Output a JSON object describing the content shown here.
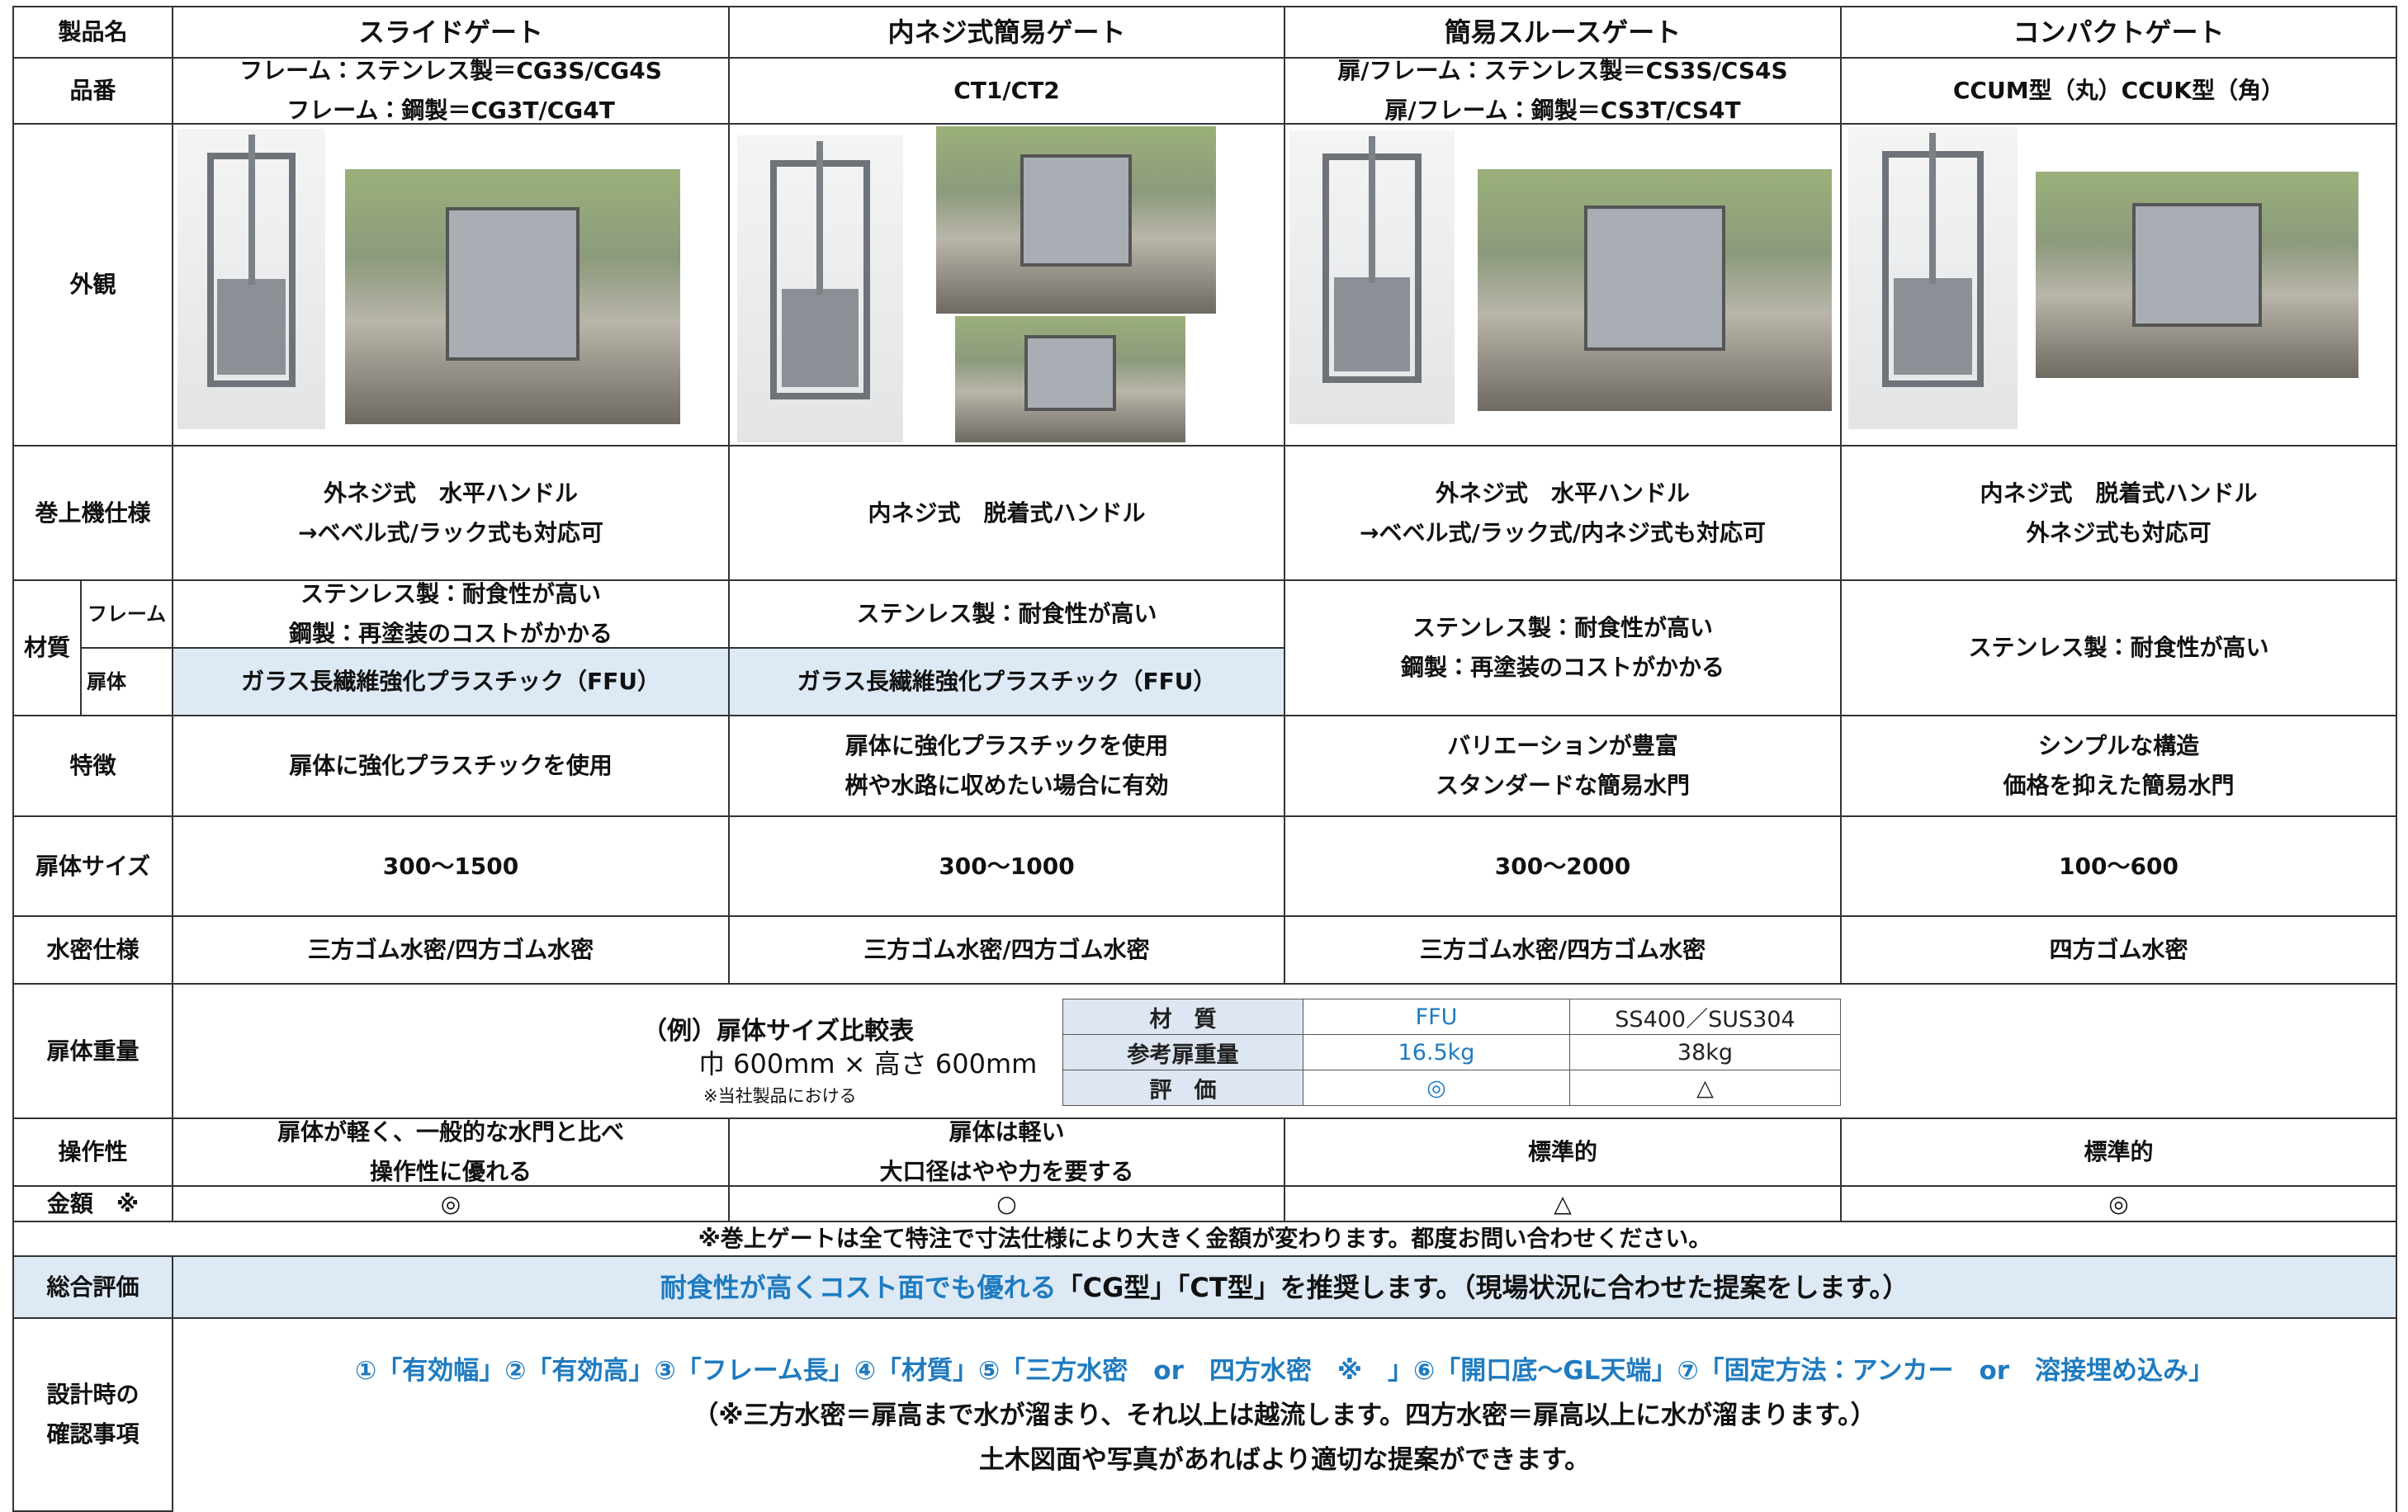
{
  "header": {
    "label": "製品名",
    "products": [
      "スライドゲート",
      "内ネジ式簡易ゲート",
      "簡易スルースゲート",
      "コンパクトゲート"
    ]
  },
  "part_numbers": {
    "label": "品番",
    "cells": [
      [
        "フレーム：ステンレス製＝CG3S/CG4S",
        "フレーム：鋼製＝CG3T/CG4T"
      ],
      [
        "CT1/CT2"
      ],
      [
        "扉/フレーム：ステンレス製＝CS3S/CS4S",
        "扉/フレーム：鋼製＝CS3T/CS4T"
      ],
      [
        "CCUM型（丸）CCUK型（角）"
      ]
    ]
  },
  "appearance": {
    "label": "外観"
  },
  "hoist": {
    "label": "巻上機仕様",
    "cells": [
      [
        "外ネジ式　水平ハンドル",
        "→ベベル式/ラック式も対応可"
      ],
      [
        "内ネジ式　脱着式ハンドル"
      ],
      [
        "外ネジ式　水平ハンドル",
        "→ベベル式/ラック式/内ネジ式も対応可"
      ],
      [
        "内ネジ式　脱着式ハンドル",
        "外ネジ式も対応可"
      ]
    ]
  },
  "material": {
    "label": "材質",
    "frame_label": "フレーム",
    "door_label": "扉体",
    "frame": [
      [
        "ステンレス製：耐食性が高い",
        "鋼製：再塗装のコストがかかる"
      ],
      [
        "ステンレス製：耐食性が高い"
      ]
    ],
    "door": [
      "ガラス長繊維強化プラスチック（FFU）",
      "ガラス長繊維強化プラスチック（FFU）"
    ],
    "merged": [
      [
        "ステンレス製：耐食性が高い",
        "鋼製：再塗装のコストがかかる"
      ],
      [
        "ステンレス製：耐食性が高い"
      ]
    ]
  },
  "features": {
    "label": "特徴",
    "cells": [
      [
        "扉体に強化プラスチックを使用"
      ],
      [
        "扉体に強化プラスチックを使用",
        "桝や水路に収めたい場合に有効"
      ],
      [
        "バリエーションが豊富",
        "スタンダードな簡易水門"
      ],
      [
        "シンプルな構造",
        "価格を抑えた簡易水門"
      ]
    ]
  },
  "size": {
    "label": "扉体サイズ",
    "cells": [
      [
        "300～1500"
      ],
      [
        "300～1000"
      ],
      [
        "300～2000"
      ],
      [
        "100～600"
      ]
    ]
  },
  "watertight": {
    "label": "水密仕様",
    "cells": [
      [
        "三方ゴム水密/四方ゴム水密"
      ],
      [
        "三方ゴム水密/四方ゴム水密"
      ],
      [
        "三方ゴム水密/四方ゴム水密"
      ],
      [
        "四方ゴム水密"
      ]
    ]
  },
  "weight": {
    "label": "扉体重量",
    "caption": [
      "（例）扉体サイズ比較表",
      "巾 600mm × 高さ 600mm",
      "※当社製品における"
    ],
    "table": [
      [
        "材　質",
        "FFU",
        "SS400／SUS304"
      ],
      [
        "参考扉重量",
        "16.5kg",
        "38kg"
      ],
      [
        "評　価",
        "◎",
        "△"
      ]
    ]
  },
  "operability": {
    "label": "操作性",
    "cells": [
      [
        "扉体が軽く、一般的な水門と比べ",
        "操作性に優れる"
      ],
      [
        "扉体は軽い",
        "大口径はやや力を要する"
      ],
      [
        "標準的"
      ],
      [
        "標準的"
      ]
    ]
  },
  "price": {
    "label": "金額　※",
    "cells": [
      [
        "◎"
      ],
      [
        "○"
      ],
      [
        "△"
      ],
      [
        "◎"
      ]
    ]
  },
  "note": "※巻上ゲートは全て特注で寸法仕様により大きく金額が変わります。都度お問い合わせください。",
  "summary": {
    "label": "総合評価",
    "highlight": "耐食性が高くコスト面でも優れる",
    "text": "「CG型」「CT型」を推奨します。（現場状況に合わせた提案をします。）"
  },
  "design": {
    "label": [
      "設計時の",
      "確認事項"
    ],
    "lines": [
      "①「有効幅」②「有効高」③「フレーム長」④「材質」⑤「三方水密　or　四方水密　※　」⑥「開口底～GL天端」⑦「固定方法：アンカー　or　溶接埋め込み」",
      "（※三方水密＝扉高まで水が溜まり、それ以上は越流します。四方水密＝扉高以上に水が溜まります。）",
      "土木図面や写真があればより適切な提案ができます。"
    ]
  }
}
